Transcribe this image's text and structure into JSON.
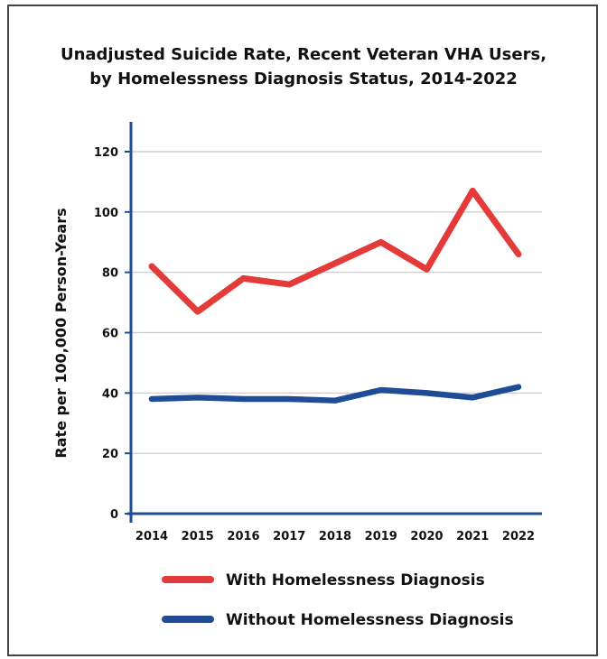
{
  "chart_data": {
    "type": "line",
    "title_line1": "Unadjusted Suicide Rate, Recent Veteran VHA Users,",
    "title_line2": "by Homelessness Diagnosis Status, 2014-2022",
    "xlabel": "",
    "ylabel": "Rate per 100,000 Person-Years",
    "ylim": [
      0,
      120
    ],
    "yticks": [
      0,
      20,
      40,
      60,
      80,
      100,
      120
    ],
    "grid": true,
    "legend_position": "bottom",
    "x": [
      "2014",
      "2015",
      "2016",
      "2017",
      "2018",
      "2019",
      "2020",
      "2021",
      "2022"
    ],
    "series": [
      {
        "name": "With Homelessness Diagnosis",
        "color": "#e23b39",
        "values": [
          82,
          67,
          78,
          76,
          83,
          90,
          81,
          107,
          86
        ]
      },
      {
        "name": "Without Homelessness Diagnosis",
        "color": "#1f4c96",
        "values": [
          38,
          38.5,
          38,
          38,
          37.5,
          41,
          40,
          38.5,
          42
        ]
      }
    ]
  },
  "colors": {
    "axis": "#1f4c96",
    "grid": "#c8c8c8"
  }
}
